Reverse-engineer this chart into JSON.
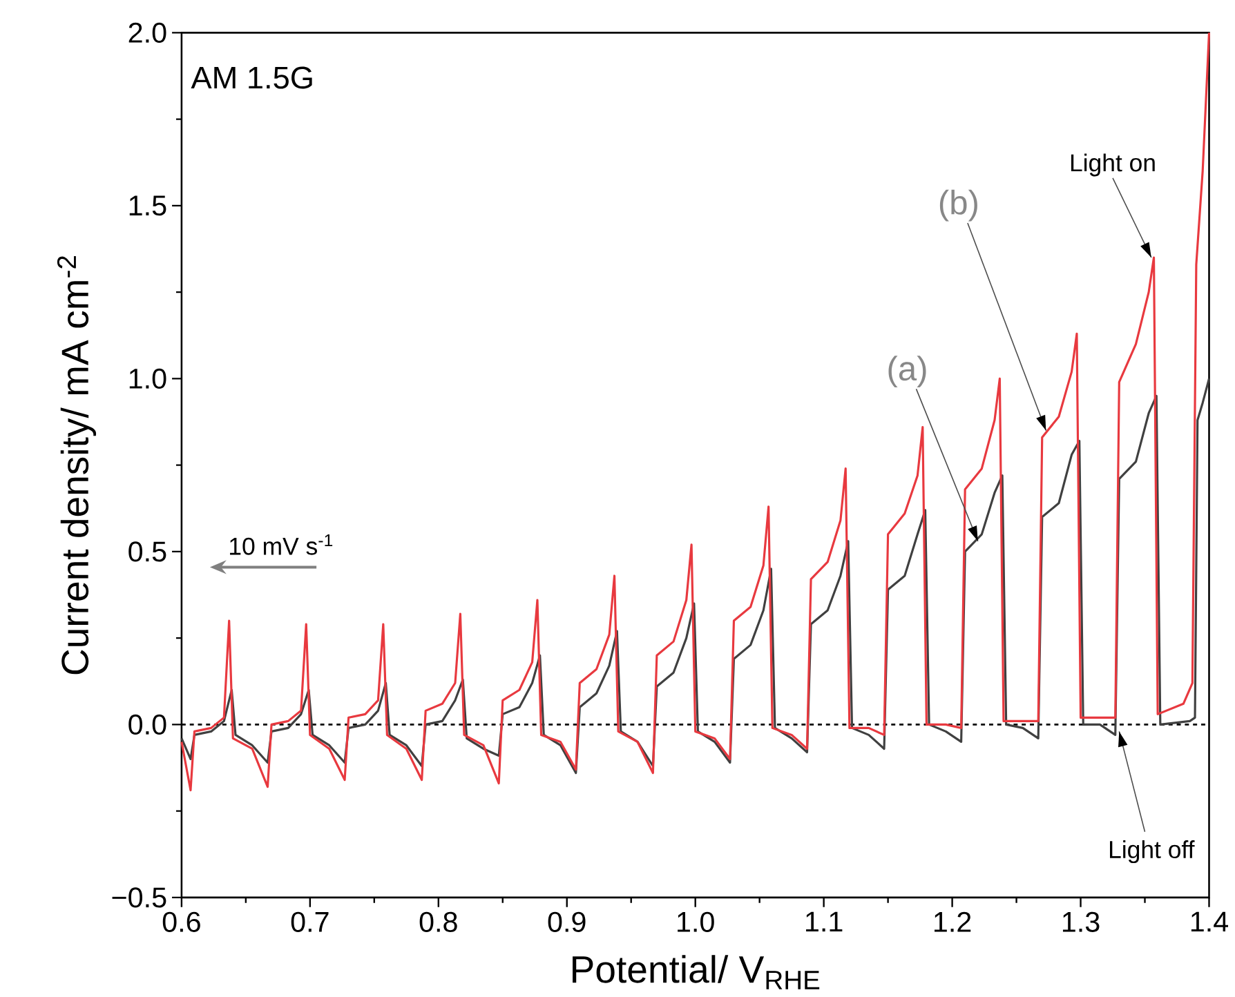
{
  "chart_data": {
    "type": "line",
    "xlabel": "Potential/ V$_{RHE}$",
    "ylabel": "Current density/ mA cm$^{-2}$",
    "xlim": [
      0.6,
      1.4
    ],
    "ylim": [
      -0.5,
      2.0
    ],
    "xticks": [
      0.6,
      0.7,
      0.8,
      0.9,
      {
        "value": 1,
        "label": "1.0"
      },
      1.1,
      1.2,
      1.3,
      1.4
    ],
    "yticks": [
      {
        "value": -0.5,
        "label": "−0.5"
      },
      {
        "value": 0,
        "label": "0.0"
      },
      0.5,
      {
        "value": 1,
        "label": "1.0"
      },
      1.5,
      {
        "value": 2,
        "label": "2.0"
      }
    ],
    "grid": false,
    "marker": "none",
    "line_style": "solid",
    "ref_lines": [
      {
        "axis": "y",
        "value": 0,
        "color": "#000000",
        "line_style": "dashed"
      }
    ],
    "annotations": [
      "AM 1.5G",
      "10 mV s$^{-1}$",
      {
        "text": "(a)",
        "x": 1.22,
        "y": 0.53
      },
      {
        "text": "(b)",
        "x": 1.273,
        "y": 0.85
      },
      {
        "text": "Light on",
        "x": 1.355,
        "y": 1.35
      },
      {
        "text": "Light off",
        "x": 1.33,
        "y": -0.02
      }
    ],
    "series": [
      {
        "color": "#404040",
        "x": [
          0.6,
          0.607,
          0.61,
          0.623,
          0.633,
          0.639,
          0.642,
          0.655,
          0.667,
          0.67,
          0.683,
          0.693,
          0.699,
          0.702,
          0.715,
          0.727,
          0.73,
          0.743,
          0.753,
          0.759,
          0.762,
          0.775,
          0.787,
          0.79,
          0.803,
          0.813,
          0.819,
          0.822,
          0.835,
          0.847,
          0.85,
          0.863,
          0.873,
          0.879,
          0.882,
          0.895,
          0.907,
          0.91,
          0.923,
          0.933,
          0.939,
          0.942,
          0.955,
          0.967,
          0.97,
          0.983,
          0.993,
          0.999,
          1.002,
          1.015,
          1.027,
          1.03,
          1.043,
          1.053,
          1.059,
          1.062,
          1.075,
          1.087,
          1.09,
          1.103,
          1.113,
          1.119,
          1.122,
          1.135,
          1.147,
          1.15,
          1.163,
          1.173,
          1.179,
          1.182,
          1.195,
          1.207,
          1.21,
          1.223,
          1.233,
          1.239,
          1.242,
          1.255,
          1.267,
          1.27,
          1.283,
          1.293,
          1.299,
          1.302,
          1.315,
          1.327,
          1.33,
          1.343,
          1.353,
          1.359,
          1.362,
          1.385,
          1.389,
          1.391,
          1.395,
          1.4
        ],
        "values": [
          -0.04,
          -0.1,
          -0.03,
          -0.02,
          0.01,
          0.1,
          -0.03,
          -0.06,
          -0.11,
          -0.02,
          -0.01,
          0.03,
          0.1,
          -0.03,
          -0.06,
          -0.11,
          -0.01,
          0.0,
          0.04,
          0.12,
          -0.03,
          -0.06,
          -0.12,
          0.0,
          0.01,
          0.07,
          0.13,
          -0.04,
          -0.07,
          -0.09,
          0.03,
          0.05,
          0.12,
          0.2,
          -0.03,
          -0.06,
          -0.14,
          0.05,
          0.09,
          0.17,
          0.27,
          -0.02,
          -0.05,
          -0.12,
          0.11,
          0.15,
          0.25,
          0.35,
          -0.02,
          -0.05,
          -0.11,
          0.19,
          0.23,
          0.33,
          0.45,
          -0.01,
          -0.04,
          -0.08,
          0.29,
          0.33,
          0.43,
          0.53,
          -0.01,
          -0.03,
          -0.07,
          0.39,
          0.43,
          0.55,
          0.62,
          0.0,
          -0.02,
          -0.05,
          0.5,
          0.55,
          0.67,
          0.72,
          0.0,
          -0.01,
          -0.04,
          0.6,
          0.64,
          0.78,
          0.82,
          0.0,
          0.0,
          -0.03,
          0.71,
          0.76,
          0.9,
          0.95,
          0.0,
          0.01,
          0.02,
          0.88,
          0.93,
          1.0
        ]
      },
      {
        "color": "#e8393f",
        "x": [
          0.6,
          0.607,
          0.61,
          0.623,
          0.633,
          0.637,
          0.64,
          0.655,
          0.667,
          0.67,
          0.683,
          0.693,
          0.697,
          0.7,
          0.715,
          0.727,
          0.73,
          0.743,
          0.753,
          0.757,
          0.76,
          0.775,
          0.787,
          0.79,
          0.803,
          0.813,
          0.817,
          0.82,
          0.835,
          0.847,
          0.85,
          0.863,
          0.873,
          0.877,
          0.88,
          0.895,
          0.907,
          0.91,
          0.923,
          0.933,
          0.937,
          0.94,
          0.955,
          0.967,
          0.97,
          0.983,
          0.993,
          0.997,
          1.0,
          1.015,
          1.027,
          1.03,
          1.043,
          1.053,
          1.057,
          1.06,
          1.075,
          1.087,
          1.09,
          1.103,
          1.113,
          1.117,
          1.12,
          1.135,
          1.147,
          1.15,
          1.163,
          1.173,
          1.177,
          1.18,
          1.195,
          1.207,
          1.21,
          1.223,
          1.233,
          1.237,
          1.24,
          1.255,
          1.267,
          1.27,
          1.283,
          1.293,
          1.297,
          1.3,
          1.315,
          1.327,
          1.33,
          1.343,
          1.353,
          1.357,
          1.36,
          1.38,
          1.387,
          1.39,
          1.395,
          1.4
        ],
        "values": [
          -0.05,
          -0.19,
          -0.02,
          -0.01,
          0.02,
          0.3,
          -0.04,
          -0.07,
          -0.18,
          0.0,
          0.01,
          0.04,
          0.29,
          -0.03,
          -0.07,
          -0.16,
          0.02,
          0.03,
          0.07,
          0.29,
          -0.03,
          -0.07,
          -0.16,
          0.04,
          0.06,
          0.12,
          0.32,
          -0.03,
          -0.06,
          -0.17,
          0.07,
          0.1,
          0.18,
          0.36,
          -0.03,
          -0.05,
          -0.13,
          0.12,
          0.16,
          0.26,
          0.43,
          -0.02,
          -0.05,
          -0.14,
          0.2,
          0.24,
          0.36,
          0.52,
          -0.02,
          -0.04,
          -0.1,
          0.3,
          0.34,
          0.46,
          0.63,
          -0.01,
          -0.03,
          -0.07,
          0.42,
          0.47,
          0.59,
          0.74,
          -0.01,
          -0.01,
          -0.03,
          0.55,
          0.61,
          0.72,
          0.86,
          0.0,
          0.0,
          -0.01,
          0.68,
          0.74,
          0.88,
          1.0,
          0.01,
          0.01,
          0.01,
          0.83,
          0.89,
          1.02,
          1.13,
          0.02,
          0.02,
          0.02,
          0.99,
          1.1,
          1.25,
          1.35,
          0.03,
          0.06,
          0.12,
          1.33,
          1.6,
          2.0
        ]
      }
    ]
  }
}
